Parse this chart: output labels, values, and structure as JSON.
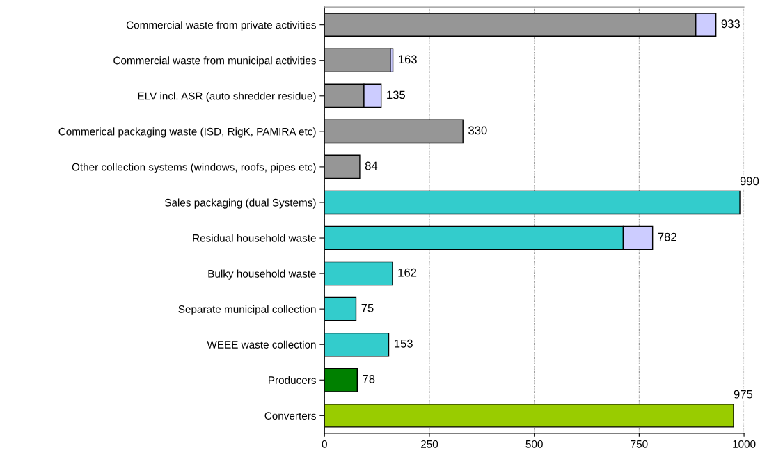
{
  "chart_data": {
    "type": "bar",
    "orientation": "horizontal",
    "stacked": true,
    "categories": [
      "Commercial waste from private activities",
      "Commercial waste from municipal activities",
      "ELV incl. ASR (auto shredder residue)",
      "Commerical packaging waste (ISD, RigK, PAMIRA etc)",
      "Other collection systems (windows, roofs, pipes etc)",
      "Sales packaging (dual Systems)",
      "Residual household waste",
      "Bulky household waste",
      "Separate municipal collection",
      "WEEE waste collection",
      "Producers",
      "Converters"
    ],
    "series": [
      {
        "colors": [
          "#969696",
          "#969696",
          "#969696",
          "#969696",
          "#969696",
          "#33cccc",
          "#33cccc",
          "#33cccc",
          "#33cccc",
          "#33cccc",
          "#008000",
          "#99cc00"
        ],
        "values": [
          885,
          157,
          94,
          330,
          84,
          990,
          712,
          162,
          75,
          153,
          78,
          975
        ]
      },
      {
        "color": "#ccccff",
        "values": [
          48,
          6,
          41,
          null,
          null,
          null,
          70,
          null,
          null,
          null,
          null,
          null
        ]
      }
    ],
    "totals": [
      "933",
      "163",
      "135",
      "330",
      "84",
      "990",
      "782",
      "162",
      "75",
      "153",
      "78",
      "975"
    ],
    "xlim": [
      0,
      1000
    ],
    "xticks": [
      0,
      250,
      500,
      750,
      1000
    ],
    "grid": "x",
    "legend": false
  }
}
